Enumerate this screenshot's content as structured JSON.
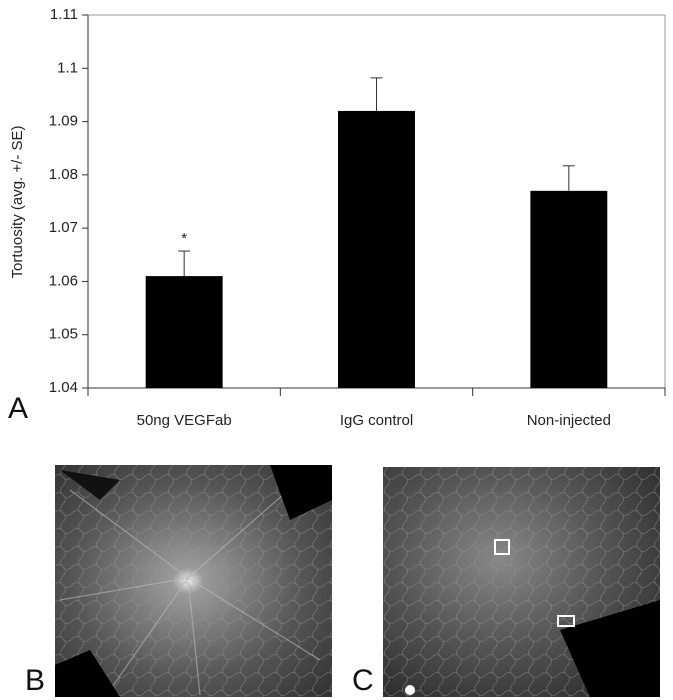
{
  "chart_data": {
    "type": "bar",
    "ylabel": "Tortuosity (avg. +/- SE)",
    "categories": [
      "50ng VEGFab",
      "IgG control",
      "Non-injected"
    ],
    "values": [
      1.061,
      1.092,
      1.077
    ],
    "errors": [
      0.0047,
      0.0062,
      0.0047
    ],
    "color": "#000000",
    "annotation": "*",
    "ylim": [
      1.04,
      1.11
    ],
    "yticks": [
      1.04,
      1.05,
      1.06,
      1.07,
      1.08,
      1.09,
      1.1,
      1.11
    ],
    "grid": false
  },
  "panels": [
    "A",
    "B",
    "C"
  ]
}
